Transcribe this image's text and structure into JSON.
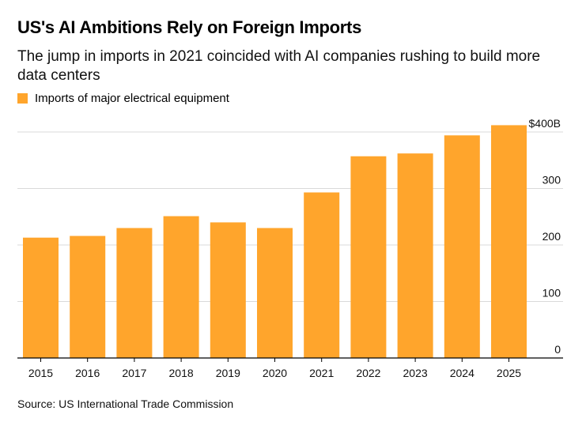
{
  "title": "US's AI Ambitions Rely on Foreign Imports",
  "subtitle": "The jump in imports in 2021 coincided with AI companies rushing to build more data centers",
  "source": "Source: US International Trade Commission",
  "colors": {
    "bar": "#FFA52C",
    "grid": "#d9d9d9",
    "axis": "#000000"
  },
  "chart_data": {
    "type": "bar",
    "categories": [
      "2015",
      "2016",
      "2017",
      "2018",
      "2019",
      "2020",
      "2021",
      "2022",
      "2023",
      "2024",
      "2025"
    ],
    "series": [
      {
        "name": "Imports of major electrical equipment",
        "values": [
          213,
          216,
          230,
          251,
          240,
          230,
          293,
          357,
          362,
          394,
          412
        ]
      }
    ],
    "ylim": [
      0,
      400
    ],
    "yticks": [
      0,
      100,
      200,
      300,
      400
    ],
    "ytick_labels": [
      "0",
      "100",
      "200",
      "300",
      "$400B"
    ],
    "grid": true,
    "y_axis_position": "right",
    "legend_position": "top-left"
  }
}
